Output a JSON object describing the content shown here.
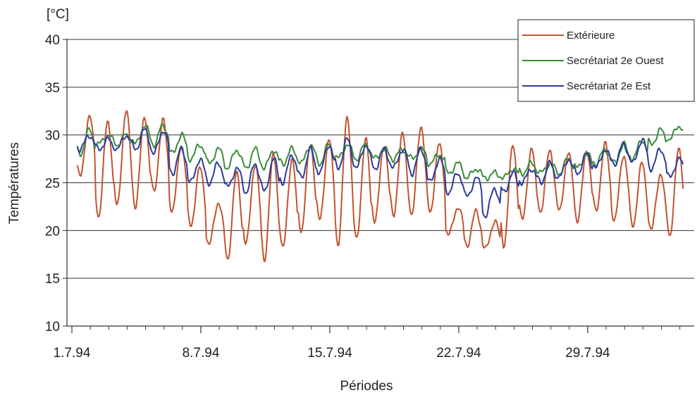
{
  "chart_data": {
    "type": "line",
    "unit_label": "[°C]",
    "xlabel": "Périodes",
    "ylabel": "Températures",
    "ylim": [
      10,
      40
    ],
    "yticks": [
      10,
      15,
      20,
      25,
      30,
      35,
      40
    ],
    "xlim": [
      0,
      34
    ],
    "xticks": [
      {
        "x": 0,
        "label": "1.7.94"
      },
      {
        "x": 7,
        "label": "8.7.94"
      },
      {
        "x": 14,
        "label": "15.7.94"
      },
      {
        "x": 21,
        "label": "22.7.94"
      },
      {
        "x": 28,
        "label": "29.7.94"
      }
    ],
    "grid": "horizontal",
    "legend_position": "top-right",
    "series": [
      {
        "name": "Extérieure",
        "color": "#c0532f",
        "daily": [
          [
            25.5,
            32.0
          ],
          [
            21.5,
            31.5
          ],
          [
            22.5,
            32.5
          ],
          [
            22.5,
            32.0
          ],
          [
            24.0,
            31.5
          ],
          [
            22.0,
            29.0
          ],
          [
            20.5,
            26.5
          ],
          [
            18.5,
            23.0
          ],
          [
            17.0,
            26.0
          ],
          [
            18.5,
            27.0
          ],
          [
            17.0,
            28.0
          ],
          [
            18.0,
            27.5
          ],
          [
            20.0,
            29.0
          ],
          [
            21.0,
            29.5
          ],
          [
            18.5,
            32.0
          ],
          [
            19.0,
            29.5
          ],
          [
            21.0,
            29.0
          ],
          [
            21.5,
            30.0
          ],
          [
            21.5,
            31.0
          ],
          [
            22.0,
            29.0
          ],
          [
            19.5,
            22.5
          ],
          [
            18.5,
            22.0
          ],
          [
            18.0,
            21.0
          ],
          [
            18.5,
            29.0
          ],
          [
            21.0,
            28.5
          ],
          [
            22.0,
            28.5
          ],
          [
            22.0,
            28.0
          ],
          [
            21.0,
            28.5
          ],
          [
            22.0,
            29.0
          ],
          [
            21.0,
            28.0
          ],
          [
            20.5,
            27.0
          ],
          [
            20.0,
            26.0
          ],
          [
            19.5,
            28.5
          ],
          [
            18.5,
            22.0
          ]
        ]
      },
      {
        "name": "Secrétariat 2e Ouest",
        "color": "#3a8a3a",
        "daily": [
          [
            28.0,
            30.5
          ],
          [
            29.0,
            30.0
          ],
          [
            29.0,
            30.0
          ],
          [
            29.0,
            31.0
          ],
          [
            29.0,
            31.0
          ],
          [
            28.0,
            30.0
          ],
          [
            27.5,
            29.0
          ],
          [
            27.0,
            28.5
          ],
          [
            26.5,
            28.5
          ],
          [
            26.5,
            28.5
          ],
          [
            26.5,
            28.5
          ],
          [
            27.0,
            28.5
          ],
          [
            27.0,
            29.0
          ],
          [
            27.0,
            29.0
          ],
          [
            27.5,
            29.0
          ],
          [
            27.5,
            29.0
          ],
          [
            27.5,
            28.5
          ],
          [
            27.5,
            28.5
          ],
          [
            27.5,
            28.5
          ],
          [
            27.0,
            28.0
          ],
          [
            26.0,
            27.0
          ],
          [
            25.5,
            26.5
          ],
          [
            25.5,
            26.0
          ],
          [
            25.5,
            26.5
          ],
          [
            26.0,
            27.0
          ],
          [
            26.0,
            27.0
          ],
          [
            26.0,
            27.5
          ],
          [
            26.5,
            28.0
          ],
          [
            27.0,
            28.5
          ],
          [
            27.0,
            29.0
          ],
          [
            27.5,
            29.5
          ],
          [
            29.0,
            30.5
          ],
          [
            29.5,
            31.0
          ],
          [
            29.0,
            30.0
          ]
        ]
      },
      {
        "name": "Secrétariat 2e Est",
        "color": "#2b3a9c",
        "daily": [
          [
            28.5,
            30.0
          ],
          [
            28.5,
            29.5
          ],
          [
            28.5,
            30.0
          ],
          [
            28.5,
            30.5
          ],
          [
            28.0,
            30.5
          ],
          [
            26.0,
            28.5
          ],
          [
            25.0,
            27.5
          ],
          [
            25.0,
            27.0
          ],
          [
            24.5,
            26.5
          ],
          [
            24.0,
            27.0
          ],
          [
            24.0,
            27.5
          ],
          [
            25.0,
            28.0
          ],
          [
            25.5,
            28.5
          ],
          [
            26.0,
            29.0
          ],
          [
            26.5,
            29.5
          ],
          [
            26.5,
            29.0
          ],
          [
            26.5,
            28.5
          ],
          [
            26.5,
            28.5
          ],
          [
            26.0,
            28.5
          ],
          [
            25.0,
            27.5
          ],
          [
            24.0,
            26.0
          ],
          [
            23.5,
            25.5
          ],
          [
            21.5,
            24.5
          ],
          [
            24.0,
            26.0
          ],
          [
            25.0,
            26.5
          ],
          [
            25.0,
            27.0
          ],
          [
            25.5,
            27.5
          ],
          [
            26.0,
            28.0
          ],
          [
            26.5,
            28.5
          ],
          [
            27.0,
            29.0
          ],
          [
            27.0,
            29.5
          ],
          [
            26.5,
            28.5
          ],
          [
            25.5,
            27.5
          ],
          [
            25.0,
            26.5
          ]
        ]
      }
    ]
  }
}
